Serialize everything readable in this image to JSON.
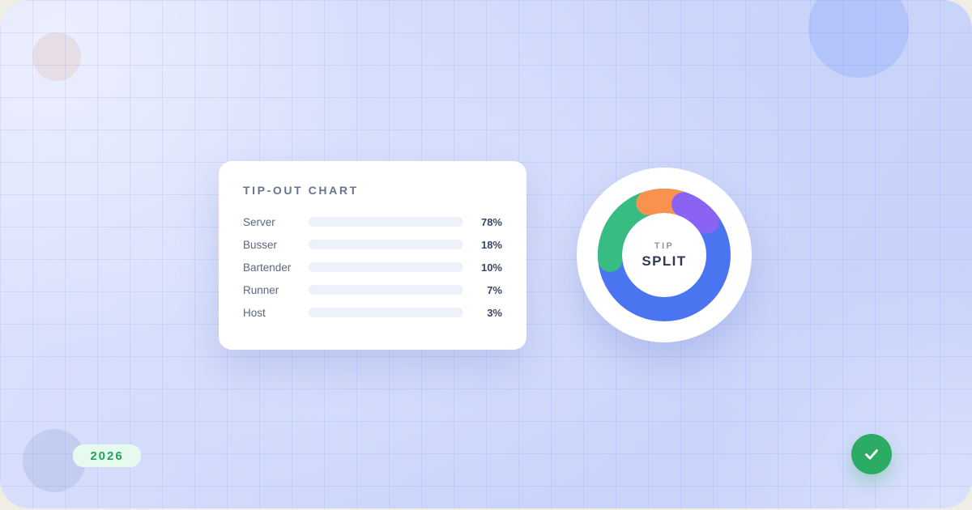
{
  "card": {
    "title": "TIP-OUT CHART",
    "rows": [
      {
        "label": "Server",
        "percent": "78%",
        "value": 78,
        "color": "#3f5fe8",
        "color2": "#6c92f5"
      },
      {
        "label": "Busser",
        "percent": "18%",
        "value": 18,
        "color": "#2eb97c",
        "color2": "#55d494"
      },
      {
        "label": "Bartender",
        "percent": "10%",
        "value": 10,
        "color": "#f58b46",
        "color2": "#f9a869"
      },
      {
        "label": "Runner",
        "percent": "7%",
        "value": 7,
        "color": "#7c5bef",
        "color2": "#9a7ff4"
      },
      {
        "label": "Host",
        "percent": "3%",
        "value": 3,
        "color": "#ee4f8d",
        "color2": "#f4739c"
      }
    ]
  },
  "donut": {
    "center_top": "TIP",
    "center_bottom": "SPLIT",
    "stroke_width": 30,
    "radius": 67,
    "segments": [
      {
        "name": "server-segment",
        "color": "#4a74f0",
        "start": 0,
        "end": 360
      },
      {
        "name": "busser-segment",
        "color": "#37bd82",
        "start": 265,
        "end": 340
      },
      {
        "name": "bartender-segment",
        "color": "#f8924e",
        "start": 343,
        "end": 374
      },
      {
        "name": "runner-segment",
        "color": "#8b63f2",
        "start": 381,
        "end": 412
      }
    ]
  },
  "badge": {
    "year": "2026"
  },
  "check_button": {
    "icon": "check-icon",
    "color": "#2bab64"
  },
  "chart_data": [
    {
      "type": "bar",
      "orientation": "horizontal",
      "title": "TIP-OUT CHART",
      "categories": [
        "Server",
        "Busser",
        "Bartender",
        "Runner",
        "Host"
      ],
      "values": [
        78,
        18,
        10,
        7,
        3
      ],
      "unit": "%",
      "xlim": [
        0,
        100
      ],
      "grid": false,
      "bar_colors": [
        "#3f5fe8",
        "#2eb97c",
        "#f58b46",
        "#7c5bef",
        "#ee4f8d"
      ]
    },
    {
      "type": "pie",
      "subtype": "donut",
      "title": "TIP SPLIT",
      "labels": [
        "Server",
        "Busser",
        "Bartender",
        "Runner"
      ],
      "values": [
        62,
        21,
        9,
        8
      ],
      "unit": "%",
      "colors": [
        "#4a74f0",
        "#37bd82",
        "#f8924e",
        "#8b63f2"
      ],
      "legend_position": "none",
      "center_text": "TIP SPLIT"
    }
  ]
}
